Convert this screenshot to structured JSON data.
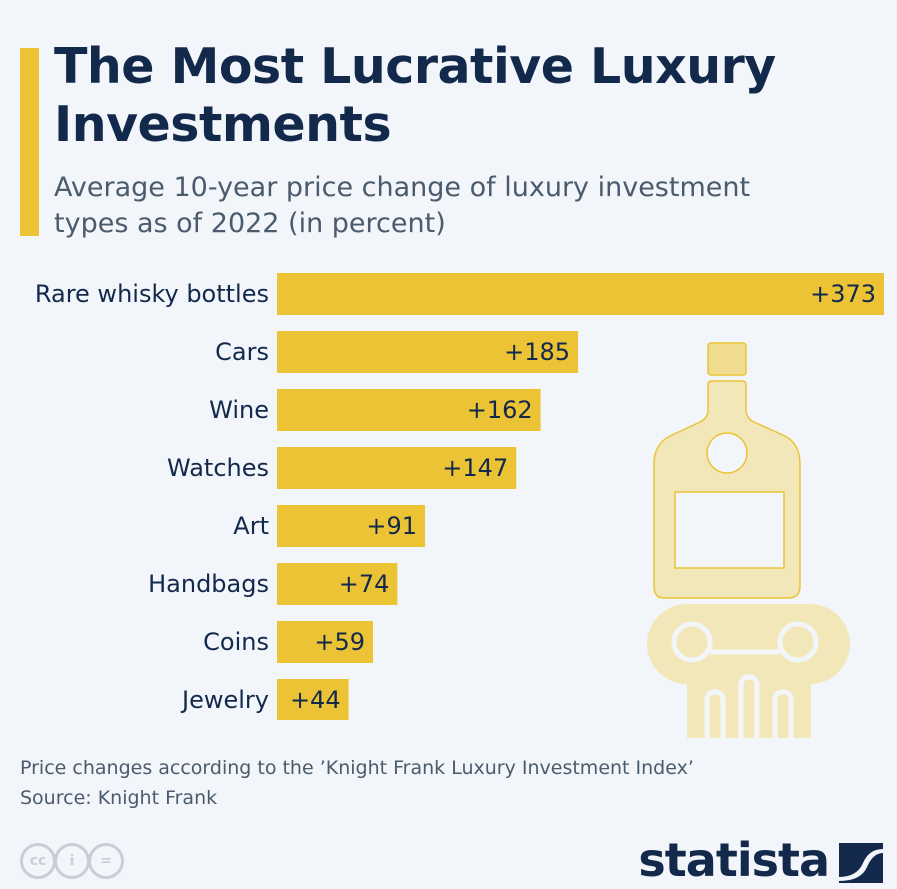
{
  "header": {
    "title": "The Most Lucrative Luxury Investments",
    "subtitle": "Average 10-year price change of luxury investment types as of 2022 (in percent)"
  },
  "chart_data": {
    "type": "bar",
    "orientation": "horizontal",
    "categories": [
      "Rare whisky bottles",
      "Cars",
      "Wine",
      "Watches",
      "Art",
      "Handbags",
      "Coins",
      "Jewelry"
    ],
    "values": [
      373,
      185,
      162,
      147,
      91,
      74,
      59,
      44
    ],
    "data_labels": [
      "+373",
      "+185",
      "+162",
      "+147",
      "+91",
      "+74",
      "+59",
      "+44"
    ],
    "bar_color": "#ebc334",
    "xlim": [
      0,
      373
    ],
    "grid": false
  },
  "footer": {
    "note": "Price changes according to the ’Knight Frank Luxury Investment Index’",
    "source": "Source: Knight Frank",
    "cc_icons": [
      "cc-icon",
      "by-icon",
      "nd-icon"
    ],
    "brand": "statista"
  }
}
